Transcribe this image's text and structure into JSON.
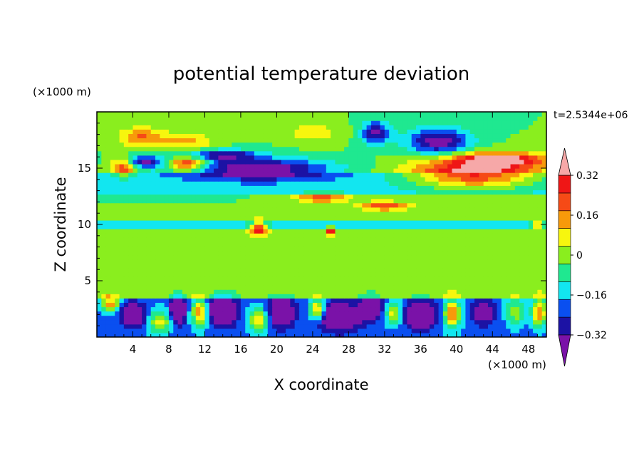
{
  "chart_data": {
    "type": "heatmap",
    "title": "potential temperature deviation",
    "xlabel": "X coordinate",
    "ylabel": "Z coordinate",
    "x_unit": "(×1000 m)",
    "y_unit": "(×1000 m)",
    "time_label": "t=2.5344e+06",
    "xlim": [
      0,
      50
    ],
    "ylim": [
      0,
      20
    ],
    "x_ticks": [
      4,
      8,
      12,
      16,
      20,
      24,
      28,
      32,
      36,
      40,
      44,
      48
    ],
    "y_ticks": [
      5,
      10,
      15
    ],
    "colorbar": {
      "levels": [
        -0.4,
        -0.32,
        -0.24,
        -0.16,
        -0.08,
        0,
        0.08,
        0.16,
        0.24,
        0.32,
        0.4
      ],
      "tick_labels": [
        "0.32",
        "0.16",
        "0",
        "−0.16",
        "−0.32"
      ],
      "tick_values": [
        0.32,
        0.16,
        0,
        -0.16,
        -0.32
      ],
      "colors": [
        "#7a12a8",
        "#1c12a4",
        "#0a4ff0",
        "#12e6f0",
        "#1fe890",
        "#8aee1e",
        "#f7f60e",
        "#f79a0a",
        "#f64a16",
        "#ef1616",
        "#f6a8a8"
      ],
      "extend": "both"
    }
  }
}
